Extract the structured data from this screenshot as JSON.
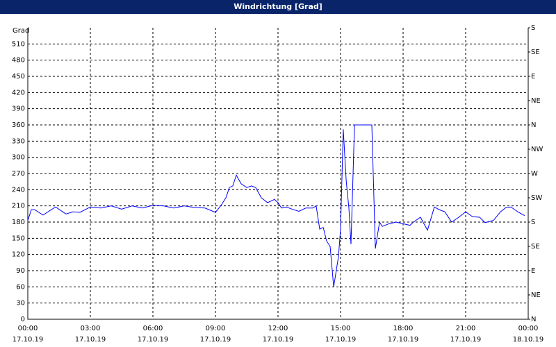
{
  "chart_data": {
    "type": "line",
    "title": "Windrichtung [Grad]",
    "y_label": "Grad",
    "x": [
      0,
      0.17,
      0.33,
      0.73,
      1.33,
      1.83,
      2.17,
      2.5,
      3.0,
      3.5,
      4.0,
      4.5,
      5.0,
      5.5,
      6.0,
      6.5,
      7.0,
      7.5,
      8.0,
      8.5,
      9.0,
      9.27,
      9.5,
      9.67,
      9.83,
      10.0,
      10.23,
      10.5,
      10.73,
      10.93,
      11.2,
      11.5,
      11.83,
      12.0,
      12.17,
      12.4,
      12.67,
      13.0,
      13.33,
      13.67,
      13.83,
      14.0,
      14.17,
      14.33,
      14.5,
      14.67,
      14.9,
      15.0,
      15.13,
      15.27,
      15.4,
      15.5,
      15.67,
      16.5,
      16.67,
      16.87,
      17.0,
      17.33,
      17.67,
      18.0,
      18.33,
      18.5,
      18.83,
      19.17,
      19.5,
      19.73,
      20.0,
      20.33,
      20.67,
      21.0,
      21.33,
      21.67,
      21.93,
      22.33,
      22.67,
      22.93,
      23.17,
      23.5,
      23.83
    ],
    "series": [
      {
        "name": "Windrichtung",
        "color": "#0000ff",
        "values": [
          183,
          203,
          203,
          193,
          208,
          195,
          199,
          198,
          208,
          206,
          210,
          204,
          210,
          206,
          211,
          210,
          206,
          210,
          207,
          206,
          198,
          211,
          225,
          244,
          247,
          267,
          251,
          244,
          247,
          244,
          225,
          216,
          222,
          216,
          206,
          208,
          204,
          200,
          206,
          206,
          210,
          167,
          170,
          145,
          135,
          60,
          116,
          167,
          352,
          257,
          206,
          139,
          360,
          360,
          131,
          180,
          172,
          177,
          180,
          177,
          174,
          180,
          189,
          165,
          208,
          203,
          199,
          180,
          189,
          199,
          190,
          189,
          179,
          183,
          199,
          207,
          208,
          199,
          192
        ]
      }
    ],
    "xlim": [
      0,
      24
    ],
    "xticks": [
      {
        "value": 0,
        "label": "00:00"
      },
      {
        "value": 3,
        "label": "03:00"
      },
      {
        "value": 6,
        "label": "06:00"
      },
      {
        "value": 9,
        "label": "09:00"
      },
      {
        "value": 12,
        "label": "12:00"
      },
      {
        "value": 15,
        "label": "15:00"
      },
      {
        "value": 18,
        "label": "18:00"
      },
      {
        "value": 21,
        "label": "21:00"
      },
      {
        "value": 24,
        "label": "00:00"
      }
    ],
    "xtick_dates": [
      "17.10.19",
      "17.10.19",
      "17.10.19",
      "17.10.19",
      "17.10.19",
      "17.10.19",
      "17.10.19",
      "17.10.19",
      "18.10.19"
    ],
    "ylim": [
      0,
      540
    ],
    "yticks": [
      0,
      30,
      60,
      90,
      120,
      150,
      180,
      210,
      240,
      270,
      300,
      330,
      360,
      390,
      420,
      450,
      480,
      510
    ],
    "y2lim": [
      0,
      540
    ],
    "y2ticks": [
      {
        "value": 0,
        "label": "N"
      },
      {
        "value": 45,
        "label": "NE"
      },
      {
        "value": 90,
        "label": "E"
      },
      {
        "value": 135,
        "label": "SE"
      },
      {
        "value": 180,
        "label": "S"
      },
      {
        "value": 225,
        "label": "SW"
      },
      {
        "value": 270,
        "label": "W"
      },
      {
        "value": 315,
        "label": "NW"
      },
      {
        "value": 360,
        "label": "N"
      },
      {
        "value": 405,
        "label": "NE"
      },
      {
        "value": 450,
        "label": "E"
      },
      {
        "value": 495,
        "label": "SE"
      },
      {
        "value": 540,
        "label": "S"
      }
    ],
    "grid": true
  }
}
